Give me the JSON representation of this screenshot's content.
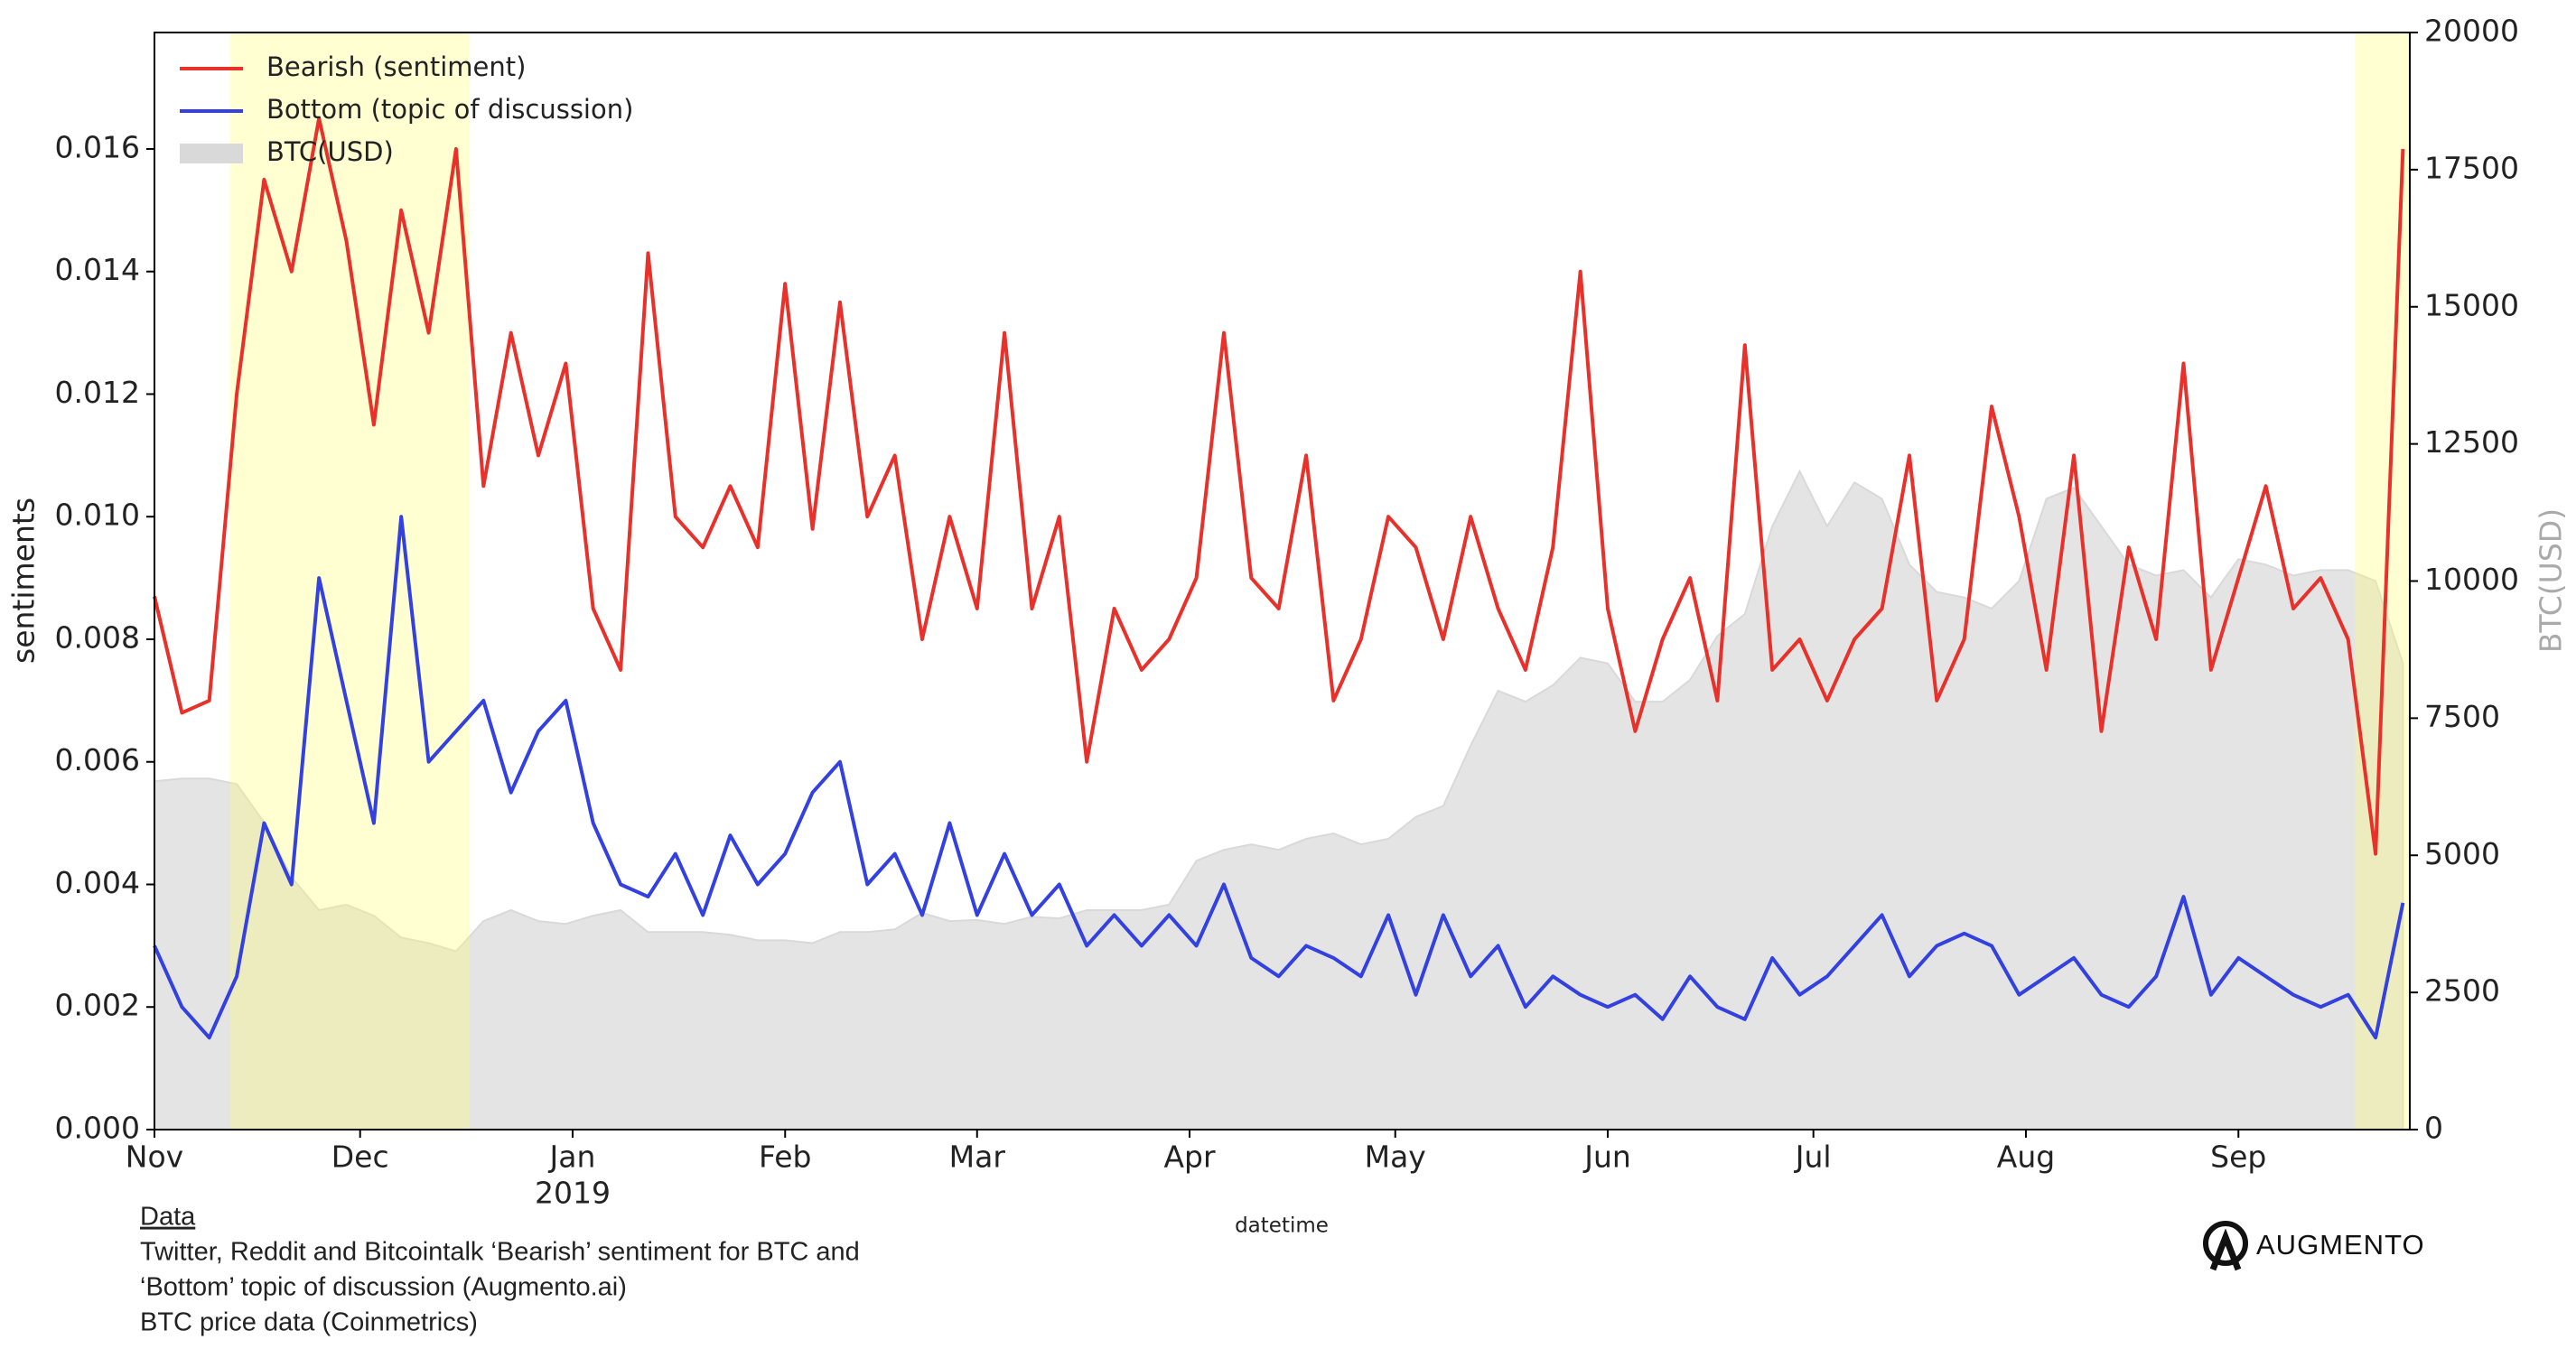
{
  "chart_data": {
    "type": "line-area-dual",
    "y_label": "sentiments",
    "y2_label": "BTC(USD)",
    "x_label": "datetime",
    "xlim": [
      0,
      329
    ],
    "xticks": [
      {
        "value": 0,
        "label": "Nov"
      },
      {
        "value": 30,
        "label": "Dec"
      },
      {
        "value": 61,
        "label": "Jan",
        "sublabel": "2019"
      },
      {
        "value": 92,
        "label": "Feb"
      },
      {
        "value": 120,
        "label": "Mar"
      },
      {
        "value": 151,
        "label": "Apr"
      },
      {
        "value": 181,
        "label": "May"
      },
      {
        "value": 212,
        "label": "Jun"
      },
      {
        "value": 242,
        "label": "Jul"
      },
      {
        "value": 273,
        "label": "Aug"
      },
      {
        "value": 304,
        "label": "Sep"
      }
    ],
    "ylim": [
      0,
      0.0179
    ],
    "yticks": [
      {
        "value": 0,
        "label": "0.000"
      },
      {
        "value": 0.002,
        "label": "0.002"
      },
      {
        "value": 0.004,
        "label": "0.004"
      },
      {
        "value": 0.006,
        "label": "0.006"
      },
      {
        "value": 0.008,
        "label": "0.008"
      },
      {
        "value": 0.01,
        "label": "0.010"
      },
      {
        "value": 0.012,
        "label": "0.012"
      },
      {
        "value": 0.014,
        "label": "0.014"
      },
      {
        "value": 0.016,
        "label": "0.016"
      }
    ],
    "y2lim": [
      0,
      20000
    ],
    "y2ticks": [
      0,
      2500,
      5000,
      7500,
      10000,
      12500,
      15000,
      17500,
      20000
    ],
    "highlight_spans": [
      [
        11,
        46
      ],
      [
        321,
        329
      ]
    ],
    "highlight_color": "#ffff66",
    "legend": "upper left",
    "x": [
      0,
      4,
      8,
      12,
      16,
      20,
      24,
      28,
      32,
      36,
      40,
      44,
      48,
      52,
      56,
      60,
      64,
      68,
      72,
      76,
      80,
      84,
      88,
      92,
      96,
      100,
      104,
      108,
      112,
      116,
      120,
      124,
      128,
      132,
      136,
      140,
      144,
      148,
      152,
      156,
      160,
      164,
      168,
      172,
      176,
      180,
      184,
      188,
      192,
      196,
      200,
      204,
      208,
      212,
      216,
      220,
      224,
      228,
      232,
      236,
      240,
      244,
      248,
      252,
      256,
      260,
      264,
      268,
      272,
      276,
      280,
      284,
      288,
      292,
      296,
      300,
      304,
      308,
      312,
      316,
      320,
      324,
      328
    ],
    "series": [
      {
        "name": "Bearish (sentiment)",
        "color": "#e8312a",
        "kind": "line",
        "values": [
          0.0087,
          0.0068,
          0.007,
          0.012,
          0.0155,
          0.014,
          0.0165,
          0.0145,
          0.0115,
          0.015,
          0.013,
          0.016,
          0.0105,
          0.013,
          0.011,
          0.0125,
          0.0085,
          0.0075,
          0.0143,
          0.01,
          0.0095,
          0.0105,
          0.0095,
          0.0138,
          0.0098,
          0.0135,
          0.01,
          0.011,
          0.008,
          0.01,
          0.0085,
          0.013,
          0.0085,
          0.01,
          0.006,
          0.0085,
          0.0075,
          0.008,
          0.009,
          0.013,
          0.009,
          0.0085,
          0.011,
          0.007,
          0.008,
          0.01,
          0.0095,
          0.008,
          0.01,
          0.0085,
          0.0075,
          0.0095,
          0.014,
          0.0085,
          0.0065,
          0.008,
          0.009,
          0.007,
          0.0128,
          0.0075,
          0.008,
          0.007,
          0.008,
          0.0085,
          0.011,
          0.007,
          0.008,
          0.0118,
          0.01,
          0.0075,
          0.011,
          0.0065,
          0.0095,
          0.008,
          0.0125,
          0.0075,
          0.009,
          0.0105,
          0.0085,
          0.009,
          0.008,
          0.0045,
          0.016
        ]
      },
      {
        "name": "Bottom (topic of discussion)",
        "color": "#3341e0",
        "kind": "line",
        "values": [
          0.003,
          0.002,
          0.0015,
          0.0025,
          0.005,
          0.004,
          0.009,
          0.007,
          0.005,
          0.01,
          0.006,
          0.0065,
          0.007,
          0.0055,
          0.0065,
          0.007,
          0.005,
          0.004,
          0.0038,
          0.0045,
          0.0035,
          0.0048,
          0.004,
          0.0045,
          0.0055,
          0.006,
          0.004,
          0.0045,
          0.0035,
          0.005,
          0.0035,
          0.0045,
          0.0035,
          0.004,
          0.003,
          0.0035,
          0.003,
          0.0035,
          0.003,
          0.004,
          0.0028,
          0.0025,
          0.003,
          0.0028,
          0.0025,
          0.0035,
          0.0022,
          0.0035,
          0.0025,
          0.003,
          0.002,
          0.0025,
          0.0022,
          0.002,
          0.0022,
          0.0018,
          0.0025,
          0.002,
          0.0018,
          0.0028,
          0.0022,
          0.0025,
          0.003,
          0.0035,
          0.0025,
          0.003,
          0.0032,
          0.003,
          0.0022,
          0.0025,
          0.0028,
          0.0022,
          0.002,
          0.0025,
          0.0038,
          0.0022,
          0.0028,
          0.0025,
          0.0022,
          0.002,
          0.0022,
          0.0015,
          0.0037
        ]
      },
      {
        "name": "BTC(USD)",
        "color": "#d9d9d9",
        "kind": "area",
        "axis": "y2",
        "values": [
          6350,
          6400,
          6400,
          6300,
          5600,
          4600,
          4000,
          4100,
          3900,
          3500,
          3400,
          3250,
          3800,
          4000,
          3800,
          3750,
          3900,
          4000,
          3600,
          3600,
          3600,
          3550,
          3450,
          3450,
          3400,
          3600,
          3600,
          3650,
          3950,
          3800,
          3820,
          3750,
          3880,
          3850,
          4000,
          4000,
          4000,
          4100,
          4900,
          5100,
          5200,
          5100,
          5300,
          5400,
          5200,
          5300,
          5700,
          5900,
          7000,
          8000,
          7800,
          8100,
          8600,
          8500,
          7800,
          7800,
          8200,
          9000,
          9400,
          11000,
          12000,
          11000,
          11800,
          11500,
          10300,
          9800,
          9700,
          9500,
          10000,
          11500,
          11700,
          11000,
          10300,
          10100,
          10200,
          9700,
          10400,
          10300,
          10100,
          10200,
          10200,
          10000,
          8500
        ]
      }
    ]
  },
  "footer": {
    "heading": "Data",
    "lines": [
      "Twitter, Reddit and Bitcointalk ‘Bearish’ sentiment for BTC and",
      "‘Bottom’ topic of discussion (Augmento.ai)",
      "BTC price data (Coinmetrics)"
    ]
  },
  "logo": {
    "text": "AUGMENTO"
  }
}
